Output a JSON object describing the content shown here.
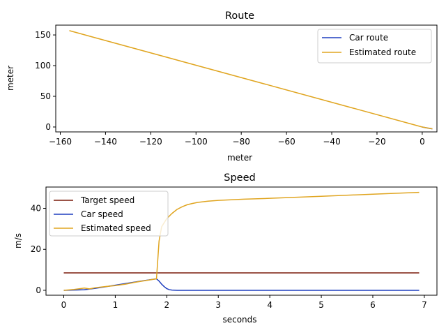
{
  "chart_data": [
    {
      "type": "line",
      "title": "Route",
      "xlabel": "meter",
      "ylabel": "meter",
      "xlim": [
        -162,
        6.5
      ],
      "ylim": [
        -8,
        166
      ],
      "xticks": [
        -160,
        -140,
        -120,
        -100,
        -80,
        -60,
        -40,
        -20,
        0
      ],
      "yticks": [
        0,
        50,
        100,
        150
      ],
      "grid": false,
      "legend": "top-right",
      "series": [
        {
          "name": "Car route",
          "color": "#1f3fbf",
          "x": [
            0,
            2,
            4.5
          ],
          "y": [
            0,
            -1.5,
            -3
          ]
        },
        {
          "name": "Estimated route",
          "color": "#e0a520",
          "x": [
            -156,
            0,
            4.5
          ],
          "y": [
            157,
            0,
            -3
          ]
        }
      ]
    },
    {
      "type": "line",
      "title": "Speed",
      "xlabel": "seconds",
      "ylabel": "m/s",
      "xlim": [
        -0.345,
        7.245
      ],
      "ylim": [
        -2.4,
        50.4
      ],
      "xticks": [
        0,
        1,
        2,
        3,
        4,
        5,
        6,
        7
      ],
      "yticks": [
        0,
        20,
        40
      ],
      "grid": false,
      "legend": "top-left",
      "series": [
        {
          "name": "Target speed",
          "color": "#7a1a0a",
          "x": [
            0,
            6.9
          ],
          "y": [
            8.5,
            8.5
          ]
        },
        {
          "name": "Car speed",
          "color": "#1f3fbf",
          "x": [
            0,
            0.2,
            0.4,
            0.6,
            0.8,
            1.0,
            1.2,
            1.4,
            1.6,
            1.8,
            1.85,
            1.9,
            1.95,
            2.0,
            2.05,
            2.1,
            2.2,
            3.0,
            4.0,
            5.0,
            6.0,
            6.9
          ],
          "y": [
            0,
            0.1,
            0.3,
            0.9,
            1.7,
            2.5,
            3.3,
            4.1,
            4.9,
            5.6,
            4.5,
            3.0,
            1.8,
            0.8,
            0.3,
            0.1,
            0,
            0,
            0,
            0,
            0,
            0
          ]
        },
        {
          "name": "Estimated speed",
          "color": "#e0a520",
          "x": [
            0,
            0.2,
            0.4,
            0.5,
            0.6,
            0.8,
            1.0,
            1.2,
            1.4,
            1.6,
            1.8,
            1.85,
            1.9,
            2.0,
            2.1,
            2.2,
            2.3,
            2.4,
            2.5,
            2.6,
            2.8,
            3.0,
            3.5,
            4.0,
            5.0,
            6.0,
            6.9
          ],
          "y": [
            0,
            0.4,
            1.1,
            0.7,
            1.2,
            1.8,
            2.3,
            3.0,
            4.0,
            4.8,
            5.6,
            24,
            31,
            35,
            37.5,
            39.5,
            40.8,
            41.8,
            42.4,
            42.9,
            43.5,
            43.9,
            44.5,
            44.9,
            45.9,
            46.9,
            47.8
          ]
        }
      ]
    }
  ]
}
